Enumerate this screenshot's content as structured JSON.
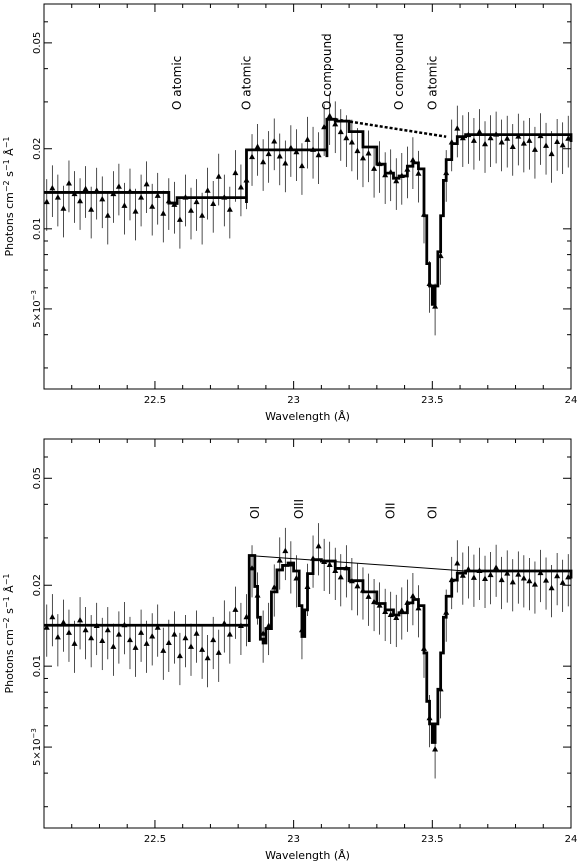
{
  "chart_data": [
    {
      "type": "line",
      "xlabel": "Wavelength (Å)",
      "ylabel": "Photons cm^-2 s^-1 Å^-1",
      "ylabel_parts": {
        "base": "Photons cm",
        "e1": "−2",
        "mid": " s",
        "e2": "−1",
        "unit": " Å",
        "e3": "−1"
      },
      "xlim": [
        22.1,
        24.0
      ],
      "ylim": [
        0.0025,
        0.07
      ],
      "yscale": "log",
      "x_ticks": [
        {
          "v": 22.5,
          "label": "22.5"
        },
        {
          "v": 23,
          "label": "23"
        },
        {
          "v": 23.5,
          "label": "23.5"
        },
        {
          "v": 24,
          "label": "24"
        }
      ],
      "y_ticks": [
        {
          "v": 0.005,
          "label": "5×10",
          "exp": "−3"
        },
        {
          "v": 0.01,
          "label": "0.01"
        },
        {
          "v": 0.02,
          "label": "0.02"
        },
        {
          "v": 0.05,
          "label": "0.05"
        }
      ],
      "annotations": [
        {
          "text": "O atomic",
          "x": 22.58
        },
        {
          "text": "O atomic",
          "x": 22.83
        },
        {
          "text": "O compound",
          "x": 23.12
        },
        {
          "text": "O compound",
          "x": 23.38
        },
        {
          "text": "O atomic",
          "x": 23.5
        }
      ],
      "model": {
        "x": [
          22.1,
          22.55,
          22.58,
          22.58,
          22.83,
          22.83,
          23.12,
          23.12,
          23.15,
          23.2,
          23.25,
          23.3,
          23.33,
          23.36,
          23.38,
          23.41,
          23.43,
          23.45,
          23.47,
          23.48,
          23.49,
          23.5,
          23.51,
          23.52,
          23.53,
          23.54,
          23.55,
          23.57,
          23.59,
          23.62,
          24.0
        ],
        "y": [
          0.0137,
          0.0125,
          0.0123,
          0.0131,
          0.0125,
          0.0198,
          0.0186,
          0.0258,
          0.0254,
          0.0232,
          0.0203,
          0.0175,
          0.0162,
          0.0155,
          0.0158,
          0.0172,
          0.0177,
          0.0168,
          0.0112,
          0.0074,
          0.0061,
          0.0052,
          0.0061,
          0.0082,
          0.0112,
          0.0152,
          0.0182,
          0.0209,
          0.0222,
          0.0226,
          0.0212
        ]
      },
      "continuum": {
        "x": [
          23.15,
          23.55
        ],
        "y": [
          0.0258,
          0.0222
        ]
      },
      "data_points": {
        "x": [
          22.11,
          22.13,
          22.15,
          22.17,
          22.19,
          22.21,
          22.23,
          22.25,
          22.27,
          22.29,
          22.31,
          22.33,
          22.35,
          22.37,
          22.39,
          22.41,
          22.43,
          22.45,
          22.47,
          22.49,
          22.51,
          22.53,
          22.55,
          22.57,
          22.59,
          22.61,
          22.63,
          22.65,
          22.67,
          22.69,
          22.71,
          22.73,
          22.75,
          22.77,
          22.79,
          22.81,
          22.83,
          22.85,
          22.87,
          22.89,
          22.91,
          22.93,
          22.95,
          22.97,
          22.99,
          23.01,
          23.03,
          23.05,
          23.07,
          23.09,
          23.11,
          23.13,
          23.15,
          23.17,
          23.19,
          23.21,
          23.23,
          23.25,
          23.27,
          23.29,
          23.31,
          23.33,
          23.35,
          23.37,
          23.39,
          23.41,
          23.43,
          23.45,
          23.47,
          23.49,
          23.51,
          23.53,
          23.55,
          23.57,
          23.59,
          23.61,
          23.63,
          23.65,
          23.67,
          23.69,
          23.71,
          23.73,
          23.75,
          23.77,
          23.79,
          23.81,
          23.83,
          23.85,
          23.87,
          23.89,
          23.91,
          23.93,
          23.95,
          23.97,
          23.99
        ],
        "y": [
          0.0126,
          0.0142,
          0.0131,
          0.0119,
          0.0148,
          0.0135,
          0.0127,
          0.0141,
          0.0118,
          0.0139,
          0.0129,
          0.0112,
          0.0135,
          0.0144,
          0.0122,
          0.0138,
          0.0116,
          0.0131,
          0.0147,
          0.0121,
          0.0133,
          0.0114,
          0.0127,
          0.0123,
          0.0108,
          0.0131,
          0.0117,
          0.0126,
          0.0112,
          0.0139,
          0.0124,
          0.0157,
          0.0131,
          0.0118,
          0.0162,
          0.0143,
          0.0152,
          0.0186,
          0.0203,
          0.0178,
          0.0191,
          0.0213,
          0.0187,
          0.0176,
          0.0201,
          0.0194,
          0.0172,
          0.0216,
          0.0198,
          0.0189,
          0.0241,
          0.0265,
          0.0247,
          0.0231,
          0.0219,
          0.0211,
          0.0196,
          0.0184,
          0.0192,
          0.0168,
          0.0175,
          0.0159,
          0.0163,
          0.0151,
          0.0158,
          0.0167,
          0.0181,
          0.0161,
          0.0113,
          0.0062,
          0.0051,
          0.0079,
          0.0162,
          0.0211,
          0.0238,
          0.0219,
          0.0225,
          0.0214,
          0.0231,
          0.0208,
          0.0219,
          0.0226,
          0.0211,
          0.0218,
          0.0203,
          0.0222,
          0.0209,
          0.0214,
          0.0198,
          0.0223,
          0.0205,
          0.0191,
          0.0212,
          0.0206,
          0.0218
        ]
      }
    },
    {
      "type": "line",
      "xlabel": "Wavelength (Å)",
      "ylabel": "Photons cm^-2 s^-1 Å^-1",
      "ylabel_parts": {
        "base": "Photons cm",
        "e1": "−2",
        "mid": " s",
        "e2": "−1",
        "unit": " Å",
        "e3": "−1"
      },
      "xlim": [
        22.1,
        24.0
      ],
      "ylim": [
        0.0025,
        0.07
      ],
      "yscale": "log",
      "x_ticks": [
        {
          "v": 22.5,
          "label": "22.5"
        },
        {
          "v": 23,
          "label": "23"
        },
        {
          "v": 23.5,
          "label": "23.5"
        },
        {
          "v": 24,
          "label": "24"
        }
      ],
      "y_ticks": [
        {
          "v": 0.005,
          "label": "5×10",
          "exp": "−3"
        },
        {
          "v": 0.01,
          "label": "0.01"
        },
        {
          "v": 0.02,
          "label": "0.02"
        },
        {
          "v": 0.05,
          "label": "0.05"
        }
      ],
      "annotations": [
        {
          "text": "OI",
          "x": 22.86
        },
        {
          "text": "OIII",
          "x": 23.02
        },
        {
          "text": "OII",
          "x": 23.35
        },
        {
          "text": "OI",
          "x": 23.5
        }
      ],
      "model": {
        "x": [
          22.1,
          22.84,
          22.84,
          22.86,
          22.87,
          22.88,
          22.89,
          22.9,
          22.92,
          22.94,
          22.96,
          22.98,
          23.0,
          23.02,
          23.03,
          23.04,
          23.05,
          23.07,
          23.1,
          23.15,
          23.2,
          23.25,
          23.3,
          23.33,
          23.36,
          23.38,
          23.41,
          23.43,
          23.45,
          23.47,
          23.48,
          23.49,
          23.5,
          23.51,
          23.52,
          23.53,
          23.54,
          23.55,
          23.57,
          23.59,
          23.62,
          24.0
        ],
        "y": [
          0.0142,
          0.0123,
          0.0258,
          0.0198,
          0.0152,
          0.0126,
          0.0122,
          0.0138,
          0.0189,
          0.0228,
          0.0237,
          0.0242,
          0.0226,
          0.0168,
          0.0129,
          0.0162,
          0.0221,
          0.0249,
          0.0246,
          0.0231,
          0.0208,
          0.0189,
          0.0171,
          0.0162,
          0.0155,
          0.0158,
          0.0172,
          0.0177,
          0.0168,
          0.0112,
          0.0074,
          0.0061,
          0.0052,
          0.0061,
          0.0082,
          0.0112,
          0.0152,
          0.0182,
          0.0209,
          0.0222,
          0.0226,
          0.0212
        ]
      },
      "continuum": {
        "x": [
          22.84,
          23.62
        ],
        "y": [
          0.0258,
          0.0226
        ]
      },
      "data_points": {
        "x": [
          22.11,
          22.13,
          22.15,
          22.17,
          22.19,
          22.21,
          22.23,
          22.25,
          22.27,
          22.29,
          22.31,
          22.33,
          22.35,
          22.37,
          22.39,
          22.41,
          22.43,
          22.45,
          22.47,
          22.49,
          22.51,
          22.53,
          22.55,
          22.57,
          22.59,
          22.61,
          22.63,
          22.65,
          22.67,
          22.69,
          22.71,
          22.73,
          22.75,
          22.77,
          22.79,
          22.81,
          22.83,
          22.85,
          22.87,
          22.89,
          22.91,
          22.93,
          22.95,
          22.97,
          22.99,
          23.01,
          23.03,
          23.05,
          23.07,
          23.09,
          23.11,
          23.13,
          23.15,
          23.17,
          23.19,
          23.21,
          23.23,
          23.25,
          23.27,
          23.29,
          23.31,
          23.33,
          23.35,
          23.37,
          23.39,
          23.41,
          23.43,
          23.45,
          23.47,
          23.49,
          23.51,
          23.53,
          23.55,
          23.57,
          23.59,
          23.61,
          23.63,
          23.65,
          23.67,
          23.69,
          23.71,
          23.73,
          23.75,
          23.77,
          23.79,
          23.81,
          23.83,
          23.85,
          23.87,
          23.89,
          23.91,
          23.93,
          23.95,
          23.97,
          23.99
        ],
        "y": [
          0.0139,
          0.0152,
          0.0128,
          0.0145,
          0.0133,
          0.0121,
          0.0148,
          0.0136,
          0.0127,
          0.0141,
          0.0124,
          0.0136,
          0.0118,
          0.0131,
          0.0142,
          0.0125,
          0.0117,
          0.0133,
          0.0121,
          0.0129,
          0.0139,
          0.0114,
          0.0122,
          0.0131,
          0.0109,
          0.0127,
          0.0118,
          0.0132,
          0.0115,
          0.0107,
          0.0125,
          0.0112,
          0.0144,
          0.0131,
          0.0162,
          0.0141,
          0.0152,
          0.0231,
          0.0183,
          0.0132,
          0.0141,
          0.0196,
          0.0247,
          0.0268,
          0.0239,
          0.0212,
          0.0136,
          0.0197,
          0.0251,
          0.0279,
          0.0244,
          0.0238,
          0.0226,
          0.0214,
          0.0231,
          0.0207,
          0.0198,
          0.0191,
          0.0181,
          0.0173,
          0.0168,
          0.0159,
          0.0155,
          0.0151,
          0.0161,
          0.0172,
          0.0182,
          0.0164,
          0.0116,
          0.0064,
          0.0049,
          0.0082,
          0.0158,
          0.0209,
          0.0241,
          0.0217,
          0.0229,
          0.0213,
          0.0226,
          0.0211,
          0.0218,
          0.0232,
          0.0209,
          0.0221,
          0.0205,
          0.0219,
          0.0212,
          0.0207,
          0.0201,
          0.0222,
          0.0208,
          0.0195,
          0.0216,
          0.0204,
          0.0214
        ]
      }
    }
  ]
}
